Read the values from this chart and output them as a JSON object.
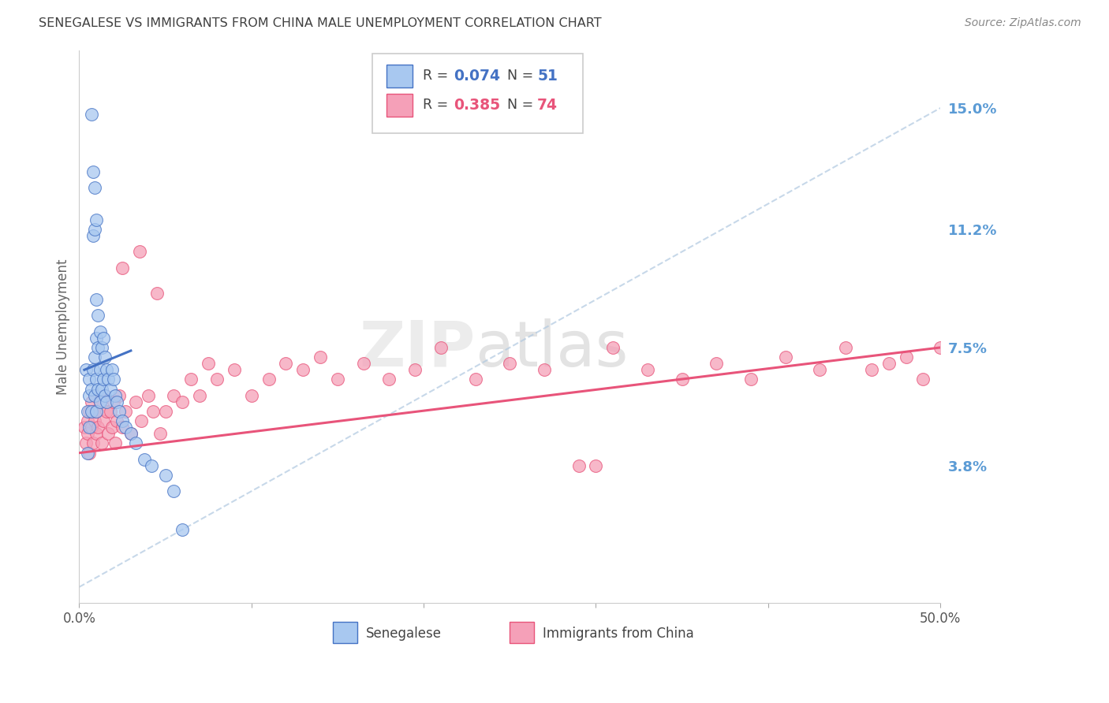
{
  "title": "SENEGALESE VS IMMIGRANTS FROM CHINA MALE UNEMPLOYMENT CORRELATION CHART",
  "source": "Source: ZipAtlas.com",
  "ylabel": "Male Unemployment",
  "right_yticks": [
    0.0,
    0.038,
    0.075,
    0.112,
    0.15
  ],
  "right_yticklabels": [
    "",
    "3.8%",
    "7.5%",
    "11.2%",
    "15.0%"
  ],
  "xmin": 0.0,
  "xmax": 0.5,
  "ymin": -0.005,
  "ymax": 0.168,
  "color_blue": "#A8C8F0",
  "color_pink": "#F5A0B8",
  "color_blue_line": "#4472C4",
  "color_pink_line": "#E8547A",
  "color_blue_dashed": "#B0C8E0",
  "title_color": "#404040",
  "right_axis_label_color": "#5B9BD5",
  "senegalese_x": [
    0.004,
    0.005,
    0.005,
    0.006,
    0.006,
    0.006,
    0.007,
    0.007,
    0.007,
    0.008,
    0.008,
    0.008,
    0.009,
    0.009,
    0.009,
    0.009,
    0.01,
    0.01,
    0.01,
    0.01,
    0.01,
    0.011,
    0.011,
    0.011,
    0.012,
    0.012,
    0.012,
    0.013,
    0.013,
    0.014,
    0.014,
    0.015,
    0.015,
    0.016,
    0.016,
    0.017,
    0.018,
    0.019,
    0.02,
    0.021,
    0.022,
    0.023,
    0.025,
    0.027,
    0.03,
    0.033,
    0.038,
    0.042,
    0.05,
    0.055,
    0.06
  ],
  "senegalese_y": [
    0.068,
    0.055,
    0.042,
    0.065,
    0.06,
    0.05,
    0.148,
    0.062,
    0.055,
    0.13,
    0.11,
    0.068,
    0.125,
    0.112,
    0.072,
    0.06,
    0.115,
    0.09,
    0.078,
    0.065,
    0.055,
    0.085,
    0.075,
    0.062,
    0.08,
    0.068,
    0.058,
    0.075,
    0.062,
    0.078,
    0.065,
    0.072,
    0.06,
    0.068,
    0.058,
    0.065,
    0.062,
    0.068,
    0.065,
    0.06,
    0.058,
    0.055,
    0.052,
    0.05,
    0.048,
    0.045,
    0.04,
    0.038,
    0.035,
    0.03,
    0.018
  ],
  "china_x": [
    0.003,
    0.004,
    0.005,
    0.005,
    0.006,
    0.006,
    0.007,
    0.007,
    0.008,
    0.008,
    0.009,
    0.009,
    0.01,
    0.01,
    0.011,
    0.012,
    0.013,
    0.014,
    0.015,
    0.016,
    0.017,
    0.018,
    0.019,
    0.02,
    0.021,
    0.022,
    0.023,
    0.025,
    0.027,
    0.03,
    0.033,
    0.036,
    0.04,
    0.043,
    0.047,
    0.05,
    0.055,
    0.06,
    0.065,
    0.07,
    0.075,
    0.08,
    0.09,
    0.1,
    0.11,
    0.12,
    0.13,
    0.14,
    0.15,
    0.165,
    0.18,
    0.195,
    0.21,
    0.23,
    0.25,
    0.27,
    0.29,
    0.31,
    0.33,
    0.35,
    0.37,
    0.39,
    0.41,
    0.43,
    0.445,
    0.46,
    0.47,
    0.48,
    0.49,
    0.5,
    0.025,
    0.035,
    0.045,
    0.3
  ],
  "china_y": [
    0.05,
    0.045,
    0.048,
    0.052,
    0.055,
    0.042,
    0.05,
    0.058,
    0.045,
    0.055,
    0.052,
    0.06,
    0.048,
    0.055,
    0.05,
    0.058,
    0.045,
    0.052,
    0.06,
    0.055,
    0.048,
    0.055,
    0.05,
    0.058,
    0.045,
    0.052,
    0.06,
    0.05,
    0.055,
    0.048,
    0.058,
    0.052,
    0.06,
    0.055,
    0.048,
    0.055,
    0.06,
    0.058,
    0.065,
    0.06,
    0.07,
    0.065,
    0.068,
    0.06,
    0.065,
    0.07,
    0.068,
    0.072,
    0.065,
    0.07,
    0.065,
    0.068,
    0.075,
    0.065,
    0.07,
    0.068,
    0.038,
    0.075,
    0.068,
    0.065,
    0.07,
    0.065,
    0.072,
    0.068,
    0.075,
    0.068,
    0.07,
    0.072,
    0.065,
    0.075,
    0.1,
    0.105,
    0.092,
    0.038
  ],
  "blue_line_x": [
    0.003,
    0.03
  ],
  "blue_line_y": [
    0.068,
    0.074
  ],
  "pink_line_x": [
    0.0,
    0.5
  ],
  "pink_line_y": [
    0.042,
    0.075
  ],
  "dashed_line_x": [
    0.0,
    0.5
  ],
  "dashed_line_y": [
    0.0,
    0.15
  ]
}
